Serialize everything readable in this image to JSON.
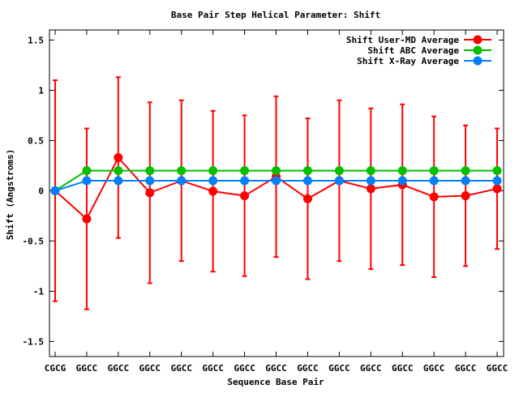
{
  "chart_data": {
    "type": "line",
    "title": "Base Pair Step Helical Parameter: Shift",
    "xlabel": "Sequence Base Pair",
    "ylabel": "Shift (Angstroms)",
    "ylim": [
      -1.65,
      1.6
    ],
    "yticks": [
      -1.5,
      -1,
      -0.5,
      0,
      0.5,
      1,
      1.5
    ],
    "ytick_labels": [
      "-1.5",
      "-1",
      "-0.5",
      "0",
      "0.5",
      "1",
      "1.5"
    ],
    "categories": [
      "CGCG",
      "GGCC",
      "GGCC",
      "GGCC",
      "GGCC",
      "GGCC",
      "GGCC",
      "GGCC",
      "GGCC",
      "GGCC",
      "GGCC",
      "GGCC",
      "GGCC",
      "GGCC",
      "GGCC"
    ],
    "legend_position": "top-right",
    "series": [
      {
        "name": "Shift User-MD Average",
        "color": "#ff0000",
        "values": [
          0.0,
          -0.28,
          0.33,
          -0.02,
          0.1,
          -0.005,
          -0.05,
          0.14,
          -0.08,
          0.1,
          0.02,
          0.06,
          -0.06,
          -0.05,
          0.02
        ],
        "error": [
          1.1,
          0.9,
          0.8,
          0.9,
          0.8,
          0.8,
          0.8,
          0.8,
          0.8,
          0.8,
          0.8,
          0.8,
          0.8,
          0.7,
          0.6
        ]
      },
      {
        "name": "Shift ABC Average",
        "color": "#00c000",
        "values": [
          0.0,
          0.2,
          0.2,
          0.2,
          0.2,
          0.2,
          0.2,
          0.2,
          0.2,
          0.2,
          0.2,
          0.2,
          0.2,
          0.2,
          0.2
        ]
      },
      {
        "name": "Shift X-Ray Average",
        "color": "#0080ff",
        "values": [
          0.0,
          0.1,
          0.1,
          0.1,
          0.1,
          0.1,
          0.1,
          0.1,
          0.1,
          0.1,
          0.1,
          0.1,
          0.1,
          0.1,
          0.1
        ]
      }
    ]
  }
}
